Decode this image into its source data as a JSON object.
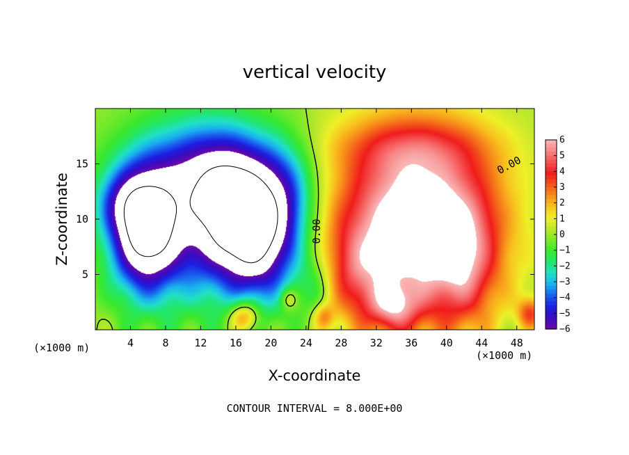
{
  "chart_data": {
    "type": "heatmap",
    "title": "vertical velocity",
    "xlabel": "X-coordinate",
    "ylabel": "Z-coordinate",
    "x_unit": "(×1000 m)",
    "x_unit_right": "(×1000 m)",
    "footer": "CONTOUR INTERVAL = 8.000E+00",
    "xlim": [
      0,
      50
    ],
    "ylim": [
      0,
      20
    ],
    "xticks": [
      4,
      8,
      12,
      16,
      20,
      24,
      28,
      32,
      36,
      40,
      44,
      48
    ],
    "xtick_labels": [
      "4",
      "8",
      "12",
      "16",
      "20",
      "24",
      "28",
      "32",
      "36",
      "40",
      "44",
      "48"
    ],
    "yticks": [
      5,
      10,
      15
    ],
    "ytick_labels": [
      "5",
      "10",
      "15"
    ],
    "contour_labels": [
      {
        "text": "0.00",
        "x": 25.6,
        "y": 8.9,
        "rotate": -90
      },
      {
        "text": "0.00",
        "x": 47.3,
        "y": 14.6,
        "rotate": -28
      }
    ],
    "colorbar": {
      "min": -6,
      "max": 6,
      "tick_values": [
        6,
        5,
        4,
        3,
        2,
        1,
        0,
        -1,
        -2,
        -3,
        -4,
        -5,
        -6
      ],
      "tick_labels": [
        "6",
        "5",
        "4",
        "3",
        "2",
        "1",
        "0",
        "−1",
        "−2",
        "−3",
        "−4",
        "−5",
        "−6"
      ],
      "colors": [
        "#6a0aa8",
        "#3a0bbf",
        "#1d1ee0",
        "#1a5fee",
        "#1ab0ef",
        "#20e0c8",
        "#22e66b",
        "#3ae82c",
        "#79e92a",
        "#bde72a",
        "#eef028",
        "#f8c21e",
        "#f78d1a",
        "#f4531b",
        "#f01c1c",
        "#f55050",
        "#f78787",
        "#f9b8b8"
      ]
    },
    "fields": [
      {
        "x": 5.5,
        "y": 8.8,
        "sx": 2.6,
        "sy": 3.8,
        "a": -7,
        "r": 0
      },
      {
        "x": 12,
        "y": 10.5,
        "sx": 5.5,
        "sy": 5.2,
        "a": -5.5,
        "r": 0
      },
      {
        "x": 17.5,
        "y": 9,
        "sx": 3.2,
        "sy": 4.2,
        "a": -7,
        "r": 0.2
      },
      {
        "x": 14,
        "y": 14.5,
        "sx": 6.5,
        "sy": 2.8,
        "a": -2.2,
        "r": 0
      },
      {
        "x": 21.5,
        "y": 11.5,
        "sx": 2.5,
        "sy": 3.5,
        "a": -3,
        "r": 0
      },
      {
        "x": 3,
        "y": 11.5,
        "sx": 2.2,
        "sy": 2,
        "a": -2.2,
        "r": 0
      },
      {
        "x": 25,
        "y": 4,
        "sx": 1.5,
        "sy": 2.2,
        "a": -1.5,
        "r": 0
      },
      {
        "x": 36.5,
        "y": 9.5,
        "sx": 6.5,
        "sy": 6,
        "a": 7.5,
        "r": 0
      },
      {
        "x": 36,
        "y": 16.5,
        "sx": 7,
        "sy": 1.8,
        "a": 1.5,
        "r": 0
      },
      {
        "x": 30,
        "y": 5,
        "sx": 2.5,
        "sy": 3,
        "a": 2,
        "r": 0
      },
      {
        "x": 42,
        "y": 6,
        "sx": 2.5,
        "sy": 4,
        "a": 2.5,
        "r": 0
      },
      {
        "x": 34,
        "y": 2,
        "sx": 2,
        "sy": 1.5,
        "a": 3,
        "r": 0
      },
      {
        "x": 17,
        "y": 1.2,
        "sx": 1.2,
        "sy": 1,
        "a": 3.5,
        "r": 0
      },
      {
        "x": 26,
        "y": 1.2,
        "sx": 0.8,
        "sy": 0.8,
        "a": 2,
        "r": 0
      },
      {
        "x": 49.5,
        "y": 1.5,
        "sx": 1,
        "sy": 1,
        "a": 3,
        "r": 0
      },
      {
        "x": 22,
        "y": 2.8,
        "sx": 0.7,
        "sy": 0.7,
        "a": 2,
        "r": 0
      }
    ]
  }
}
